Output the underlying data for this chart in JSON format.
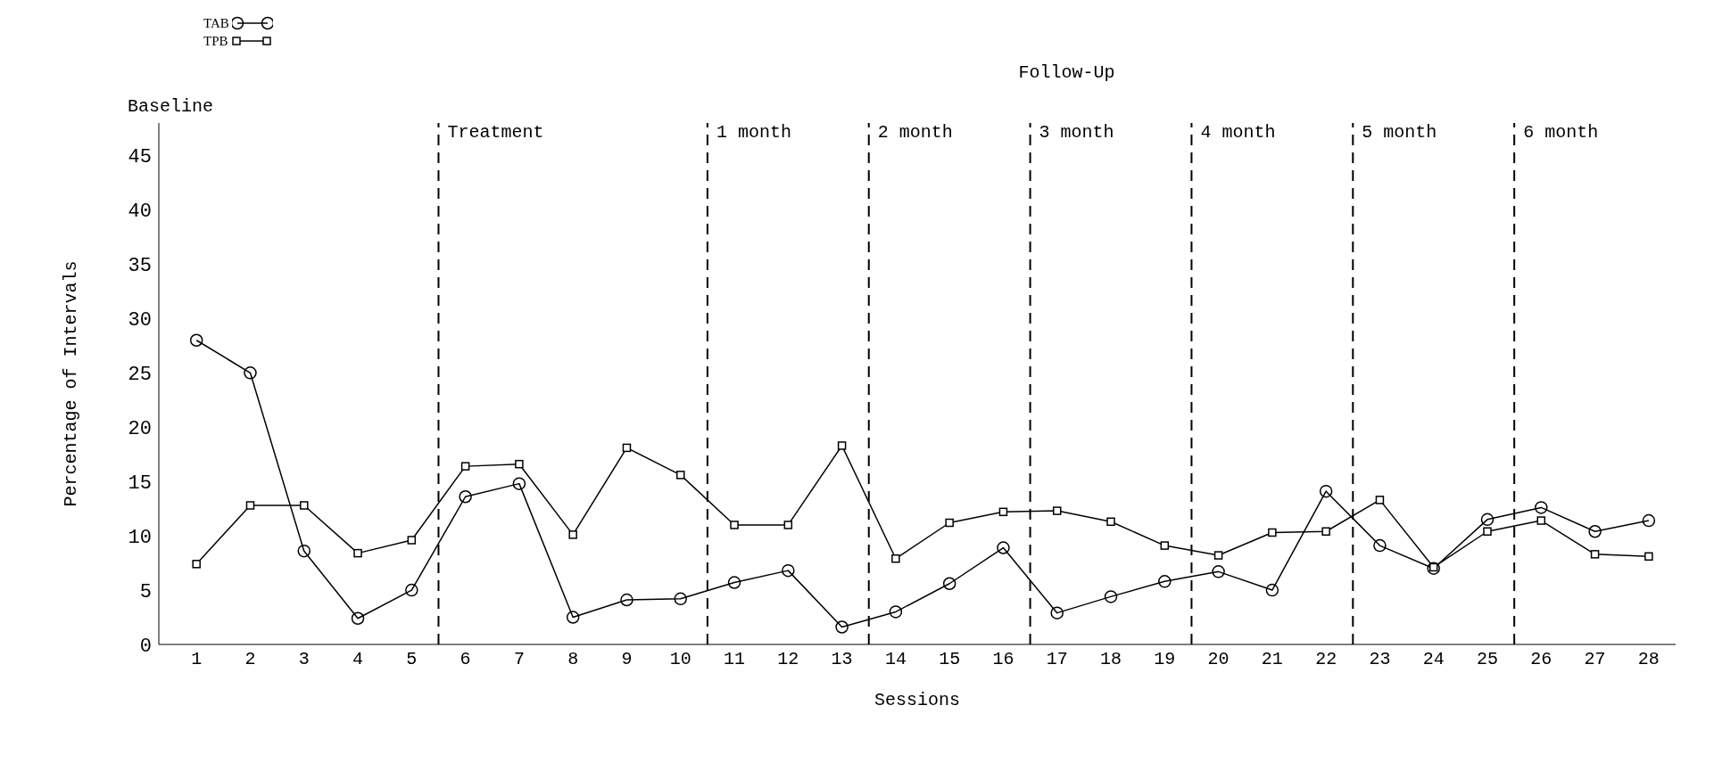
{
  "chart_data": {
    "type": "line",
    "xlabel": "Sessions",
    "ylabel": "Percentage of Intervals",
    "x": [
      1,
      2,
      3,
      4,
      5,
      6,
      7,
      8,
      9,
      10,
      11,
      12,
      13,
      14,
      15,
      16,
      17,
      18,
      19,
      20,
      21,
      22,
      23,
      24,
      25,
      26,
      27,
      28
    ],
    "series": [
      {
        "name": "TAB",
        "color": "#000000",
        "marker": "circle",
        "values": [
          28,
          25,
          8.6,
          2.4,
          5,
          13.6,
          14.8,
          2.5,
          4.1,
          4.2,
          5.7,
          6.8,
          1.6,
          3,
          5.6,
          8.9,
          2.9,
          4.4,
          5.8,
          6.7,
          5,
          14.1,
          9.1,
          7,
          11.5,
          12.6,
          10.4,
          11.4
        ]
      },
      {
        "name": "TPB",
        "color": "#000000",
        "marker": "square",
        "values": [
          7.4,
          12.8,
          12.8,
          8.4,
          9.6,
          16.4,
          16.6,
          10.1,
          18.1,
          15.6,
          11,
          11,
          18.3,
          7.9,
          11.2,
          12.2,
          12.3,
          11.3,
          9.1,
          8.2,
          10.3,
          10.4,
          13.3,
          7.1,
          10.4,
          11.4,
          8.3,
          8.1
        ]
      }
    ],
    "xlim": [
      0.3,
      28.5
    ],
    "xticks": [
      1,
      2,
      3,
      4,
      5,
      6,
      7,
      8,
      9,
      10,
      11,
      12,
      13,
      14,
      15,
      16,
      17,
      18,
      19,
      20,
      21,
      22,
      23,
      24,
      25,
      26,
      27,
      28
    ],
    "ylim": [
      0,
      48
    ],
    "yticks": [
      0,
      5,
      10,
      15,
      20,
      25,
      30,
      35,
      40,
      45
    ],
    "ref_lines": [
      {
        "axis": "x",
        "value": 5.5,
        "label": "Treatment",
        "line_style": "dashed",
        "color": "#000000"
      },
      {
        "axis": "x",
        "value": 10.5,
        "label": "1 month",
        "line_style": "dashed",
        "color": "#000000"
      },
      {
        "axis": "x",
        "value": 13.5,
        "label": "2 month",
        "line_style": "dashed",
        "color": "#000000"
      },
      {
        "axis": "x",
        "value": 16.5,
        "label": "3 month",
        "line_style": "dashed",
        "color": "#000000"
      },
      {
        "axis": "x",
        "value": 19.5,
        "label": "4 month",
        "line_style": "dashed",
        "color": "#000000"
      },
      {
        "axis": "x",
        "value": 22.5,
        "label": "5 month",
        "line_style": "dashed",
        "color": "#000000"
      },
      {
        "axis": "x",
        "value": 25.5,
        "label": "6 month",
        "line_style": "dashed",
        "color": "#000000"
      }
    ],
    "annotations": [
      "Baseline",
      "Follow-Up"
    ],
    "grid": false,
    "legend": "top left",
    "line_style": "solid"
  }
}
